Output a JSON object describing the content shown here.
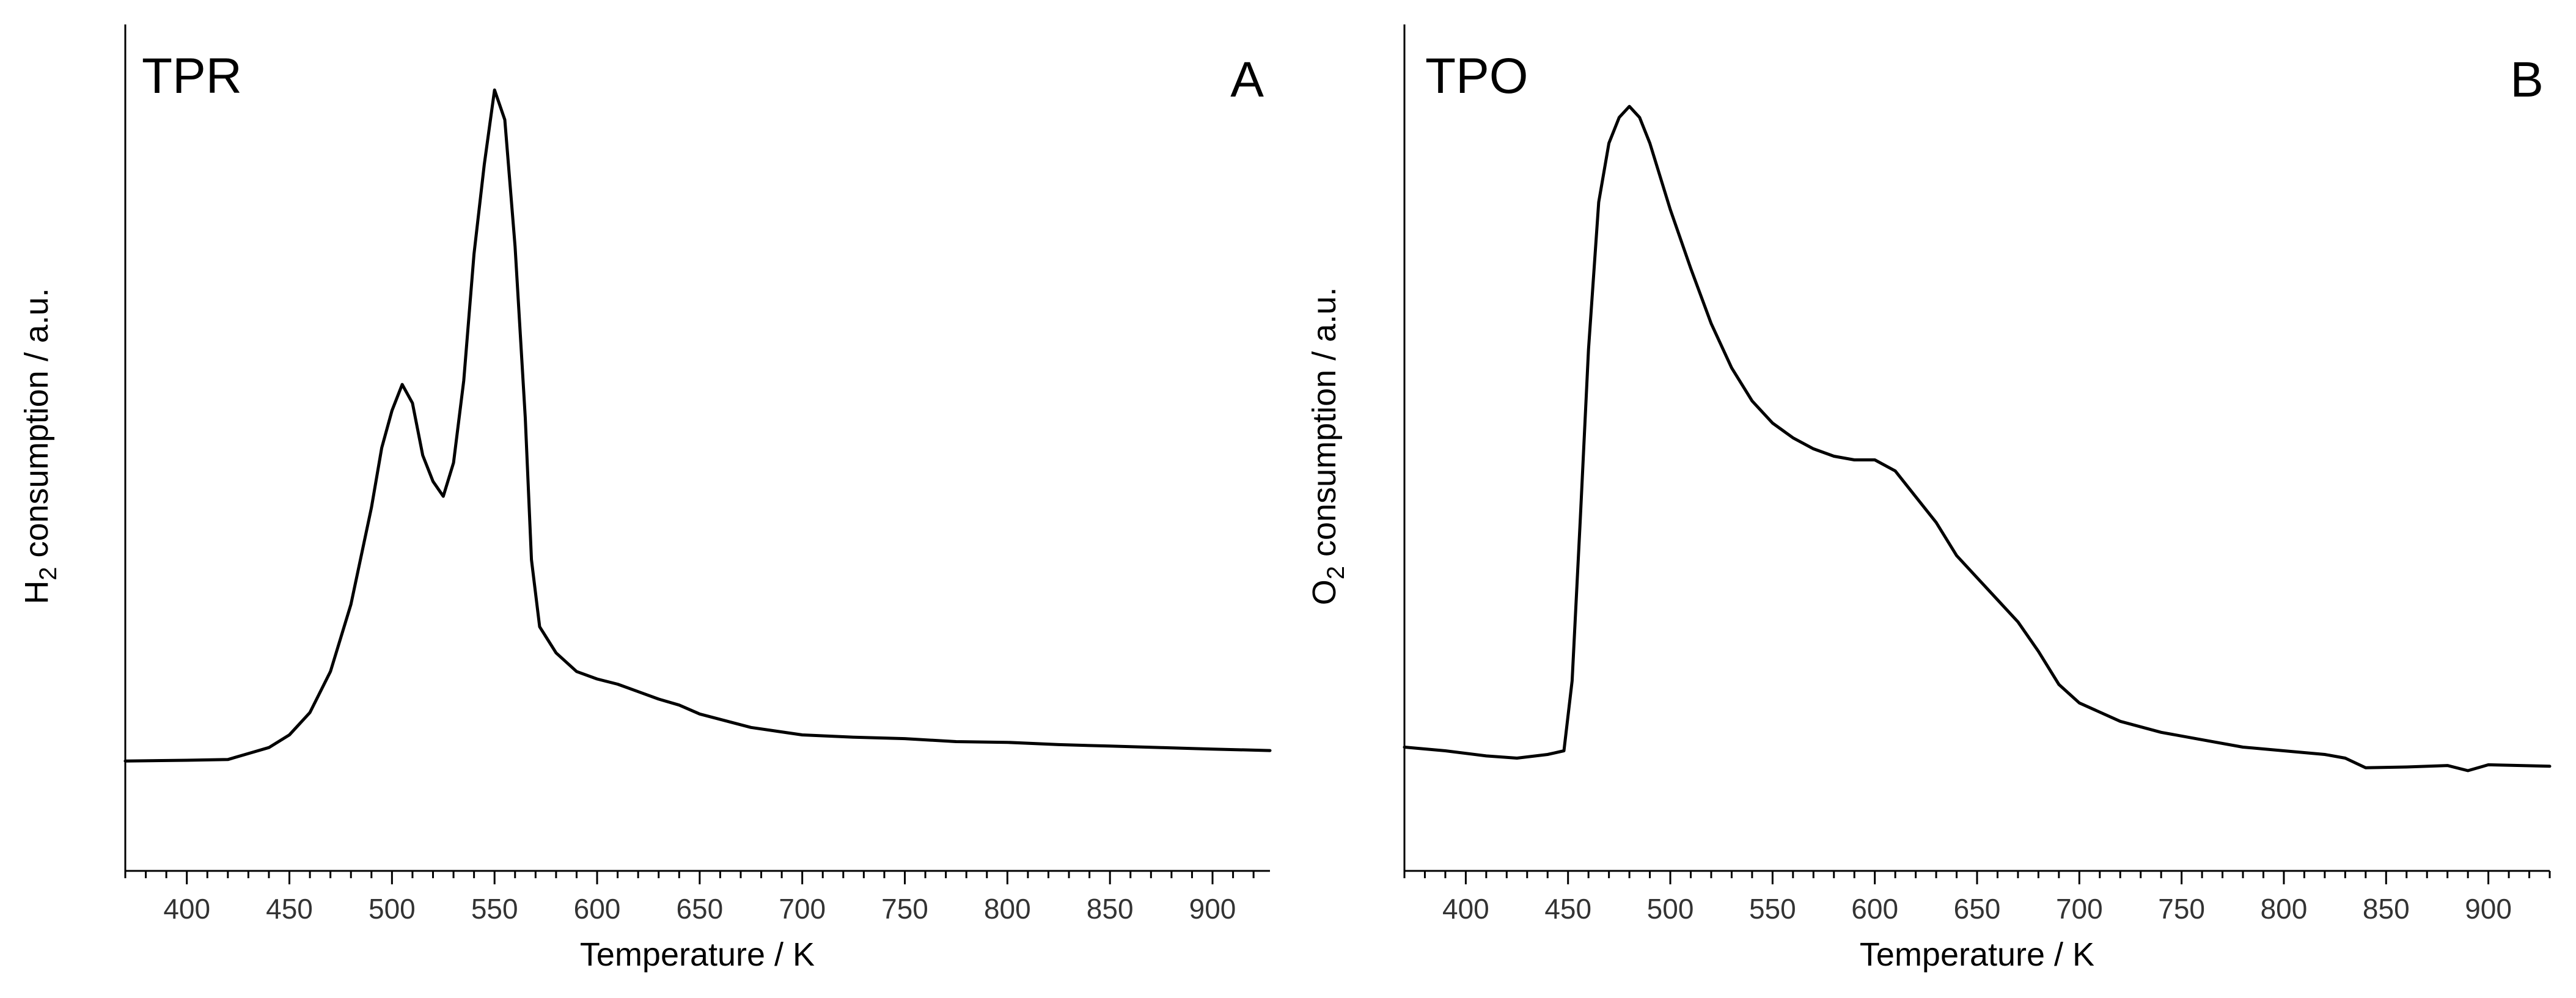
{
  "chart_data": [
    {
      "type": "line",
      "panel_label": "A",
      "title": "TPR",
      "xlabel": "Temperature / K",
      "ylabel": {
        "pre": "H",
        "sub": "2",
        "post": " consumption / a.u."
      },
      "xlim": [
        370,
        928
      ],
      "ylim": [
        0,
        100
      ],
      "grid": false,
      "xticks": [
        400,
        450,
        500,
        550,
        600,
        650,
        700,
        750,
        800,
        850,
        900
      ],
      "xtick_labels": [
        "400",
        "450",
        "500",
        "550",
        "600",
        "650",
        "700",
        "750",
        "800",
        "850",
        "900"
      ],
      "series": [
        {
          "name": "TPR",
          "x": [
            370,
            400,
            420,
            430,
            440,
            450,
            460,
            470,
            480,
            490,
            495,
            500,
            505,
            510,
            515,
            520,
            525,
            530,
            535,
            540,
            545,
            550,
            555,
            560,
            565,
            568,
            572,
            580,
            590,
            600,
            610,
            620,
            630,
            640,
            650,
            675,
            700,
            725,
            750,
            775,
            800,
            825,
            850,
            875,
            900,
            928
          ],
          "y": [
            9.0,
            9.1,
            9.2,
            10.0,
            10.8,
            12.5,
            15.5,
            21.0,
            30.0,
            43.0,
            51.0,
            56.0,
            59.5,
            57.0,
            50.0,
            46.5,
            44.5,
            49.0,
            60.0,
            77.0,
            89.0,
            99.0,
            95.0,
            78.0,
            55.0,
            36.0,
            27.0,
            23.5,
            21.0,
            20.0,
            19.3,
            18.3,
            17.3,
            16.5,
            15.3,
            13.5,
            12.5,
            12.2,
            12.0,
            11.6,
            11.5,
            11.2,
            11.0,
            10.8,
            10.6,
            10.4
          ]
        }
      ]
    },
    {
      "type": "line",
      "panel_label": "B",
      "title": "TPO",
      "xlabel": "Temperature / K",
      "ylabel": {
        "pre": "O",
        "sub": "2",
        "post": " consumption / a.u."
      },
      "xlim": [
        370,
        930
      ],
      "ylim": [
        0,
        100
      ],
      "grid": false,
      "xticks": [
        400,
        450,
        500,
        550,
        600,
        650,
        700,
        750,
        800,
        850,
        900
      ],
      "xtick_labels": [
        "400",
        "450",
        "500",
        "550",
        "600",
        "650",
        "700",
        "750",
        "800",
        "850",
        "900"
      ],
      "series": [
        {
          "name": "TPO",
          "x": [
            370,
            390,
            410,
            425,
            440,
            448,
            452,
            456,
            460,
            465,
            470,
            475,
            480,
            485,
            490,
            500,
            510,
            520,
            530,
            540,
            550,
            560,
            570,
            580,
            590,
            600,
            610,
            620,
            630,
            640,
            650,
            660,
            670,
            680,
            690,
            700,
            720,
            740,
            760,
            780,
            800,
            820,
            830,
            840,
            860,
            880,
            890,
            900,
            930
          ],
          "y": [
            11.0,
            10.5,
            9.8,
            9.5,
            10.0,
            10.5,
            20.0,
            42.0,
            65.0,
            85.0,
            93.0,
            96.5,
            98.0,
            96.5,
            93.0,
            84.0,
            76.0,
            68.5,
            62.5,
            58.0,
            55.0,
            53.0,
            51.5,
            50.5,
            50.0,
            50.0,
            48.5,
            45.0,
            41.5,
            37.0,
            34.0,
            31.0,
            28.0,
            24.0,
            19.5,
            17.0,
            14.5,
            13.0,
            12.0,
            11.0,
            10.5,
            10.0,
            9.5,
            8.2,
            8.3,
            8.5,
            7.8,
            8.6,
            8.4
          ]
        }
      ]
    }
  ]
}
